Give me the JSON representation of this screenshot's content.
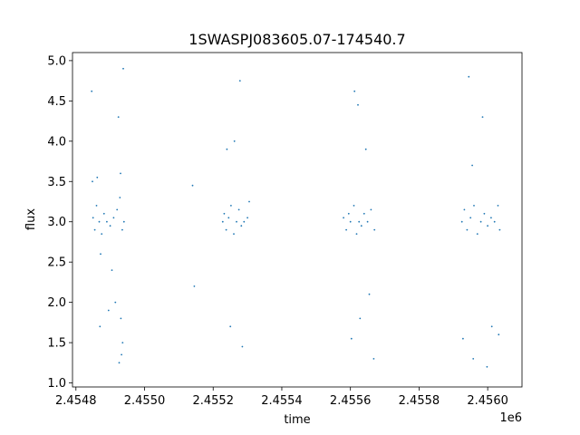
{
  "chart_data": {
    "type": "scatter",
    "title": "1SWASPJ083605.07-174540.7",
    "xlabel": "time",
    "ylabel": "flux",
    "x_offset_label": "1e6",
    "xlim": [
      2454790,
      2456100
    ],
    "ylim": [
      0.95,
      5.1
    ],
    "x_ticks": [
      2454800,
      2455000,
      2455200,
      2455400,
      2455600,
      2455800,
      2456000
    ],
    "x_tick_labels": [
      "2.4548",
      "2.4550",
      "2.4552",
      "2.4554",
      "2.4556",
      "2.4558",
      "2.4560"
    ],
    "y_ticks": [
      1.0,
      1.5,
      2.0,
      2.5,
      3.0,
      3.5,
      4.0,
      4.5,
      5.0
    ],
    "y_tick_labels": [
      "1.0",
      "1.5",
      "2.0",
      "2.5",
      "3.0",
      "3.5",
      "4.0",
      "4.5",
      "5.0"
    ],
    "grid": false,
    "marker_color": "#1f77b4",
    "series": [
      {
        "x": [
          2454850,
          2454855,
          2454860,
          2454868,
          2454875,
          2454882,
          2454890,
          2454900,
          2454910,
          2454920,
          2454928,
          2454935,
          2454940,
          2454846,
          2454870,
          2454895,
          2454915,
          2454930,
          2454938,
          2454926,
          2454933,
          2454862,
          2454872,
          2454905,
          2454848,
          2454924,
          2454936,
          2454931,
          2455140,
          2455145,
          2455228,
          2455232,
          2455238,
          2455245,
          2455252,
          2455260,
          2455268,
          2455275,
          2455282,
          2455290,
          2455300,
          2455305,
          2455250,
          2455240,
          2455262,
          2455285,
          2455278,
          2455580,
          2455588,
          2455595,
          2455600,
          2455610,
          2455618,
          2455625,
          2455632,
          2455640,
          2455650,
          2455660,
          2455670,
          2455612,
          2455628,
          2455645,
          2455603,
          2455622,
          2455668,
          2455655,
          2455925,
          2455932,
          2455940,
          2455950,
          2455960,
          2455970,
          2455980,
          2455990,
          2456000,
          2456010,
          2456020,
          2456030,
          2456035,
          2455945,
          2455958,
          2455985,
          2456012,
          2455928,
          2455998,
          2456032,
          2455955
        ],
        "y": [
          3.05,
          2.9,
          3.2,
          3.0,
          2.85,
          3.1,
          3.0,
          2.95,
          3.05,
          3.15,
          3.3,
          2.9,
          3.0,
          4.62,
          1.7,
          1.9,
          2.0,
          3.6,
          4.9,
          1.25,
          1.35,
          3.55,
          2.6,
          2.4,
          3.5,
          4.3,
          1.5,
          1.8,
          3.45,
          2.2,
          3.0,
          3.1,
          2.9,
          3.05,
          3.2,
          2.85,
          3.0,
          3.15,
          2.95,
          3.0,
          3.05,
          3.25,
          1.7,
          3.9,
          4.0,
          1.45,
          4.75,
          3.05,
          2.9,
          3.1,
          3.0,
          3.2,
          2.85,
          3.0,
          2.95,
          3.1,
          3.0,
          3.15,
          2.9,
          4.62,
          1.8,
          3.9,
          1.55,
          4.45,
          1.3,
          2.1,
          3.0,
          3.15,
          2.9,
          3.05,
          3.2,
          2.85,
          3.0,
          3.1,
          2.95,
          3.05,
          3.0,
          3.2,
          2.9,
          4.8,
          1.3,
          4.3,
          1.7,
          1.55,
          1.2,
          1.6,
          3.7
        ]
      }
    ]
  }
}
